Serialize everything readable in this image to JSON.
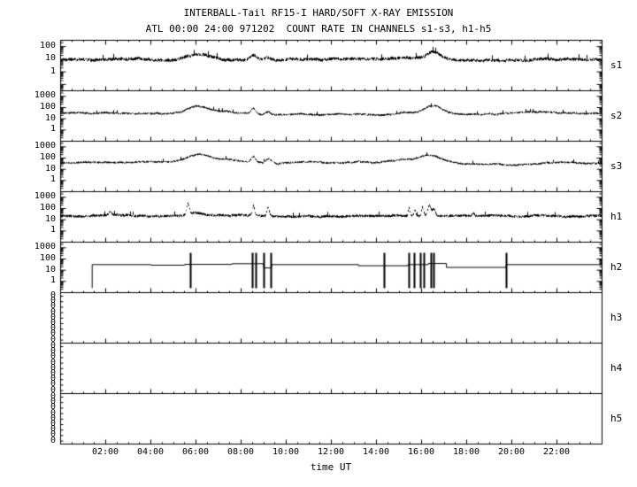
{
  "page": {
    "bg": "#ffffff",
    "fg": "#000000"
  },
  "title": {
    "line1": "INTERBALL-Tail RF15-I HARD/SOFT X-RAY EMISSION",
    "line2": "ATL 00:00 24:00 971202  COUNT RATE IN CHANNELS s1-s3, h1-h5"
  },
  "x_axis": {
    "label": "time UT",
    "range_hours": [
      0,
      24
    ],
    "major_tick_hours": 2,
    "minor_tick_hours": 0.5,
    "tick_labels": [
      {
        "t": 2,
        "text": "02:00"
      },
      {
        "t": 4,
        "text": "04:00"
      },
      {
        "t": 6,
        "text": "06:00"
      },
      {
        "t": 8,
        "text": "08:00"
      },
      {
        "t": 10,
        "text": "10:00"
      },
      {
        "t": 12,
        "text": "12:00"
      },
      {
        "t": 14,
        "text": "14:00"
      },
      {
        "t": 16,
        "text": "16:00"
      },
      {
        "t": 18,
        "text": "18:00"
      },
      {
        "t": 20,
        "text": "20:00"
      },
      {
        "t": 22,
        "text": "22:00"
      }
    ]
  },
  "chart_data": {
    "type": "line",
    "title": "INTERBALL-Tail RF15-I HARD/SOFT X-RAY EMISSION",
    "subtitle": "ATL 00:00 24:00 971202  COUNT RATE IN CHANNELS s1-s3, h1-h5",
    "x_unit": "hours UT, 00:00-24:00 on 1997-12-02",
    "y_unit": "count rate, log scale",
    "legend": "off",
    "grid": "off",
    "panels": [
      {
        "label": "s1",
        "kind": "noisy",
        "ylog_range": [
          -1.5,
          2.5
        ],
        "yticks": [
          {
            "text": "100",
            "log": 2
          },
          {
            "text": "10",
            "log": 1
          },
          {
            "text": "1",
            "log": 0
          }
        ],
        "baseline_log": 0.95,
        "noise_log": 0.13,
        "events": [
          {
            "t": 6.0,
            "w": 0.5,
            "amp": 0.3
          },
          {
            "t": 6.6,
            "w": 1.0,
            "amp": 0.12
          },
          {
            "t": 8.55,
            "w": 0.12,
            "amp": 0.3
          },
          {
            "t": 9.2,
            "w": 0.1,
            "amp": 0.18
          },
          {
            "t": 15.3,
            "w": 0.4,
            "amp": 0.1
          },
          {
            "t": 16.5,
            "w": 0.3,
            "amp": 0.55
          }
        ]
      },
      {
        "label": "s2",
        "kind": "noisy",
        "ylog_range": [
          -1,
          3.5
        ],
        "yticks": [
          {
            "text": "1000",
            "log": 3
          },
          {
            "text": "100",
            "log": 2
          },
          {
            "text": "10",
            "log": 1
          },
          {
            "text": "1",
            "log": 0
          }
        ],
        "baseline_log": 1.45,
        "noise_log": 0.09,
        "events": [
          {
            "t": 6.0,
            "w": 0.45,
            "amp": 0.55
          },
          {
            "t": 7.0,
            "w": 0.8,
            "amp": 0.2
          },
          {
            "t": 8.55,
            "w": 0.1,
            "amp": 0.5
          },
          {
            "t": 9.2,
            "w": 0.1,
            "amp": 0.25
          },
          {
            "t": 13.5,
            "w": 1.5,
            "amp": -0.08
          },
          {
            "t": 15.3,
            "w": 0.35,
            "amp": 0.18
          },
          {
            "t": 16.5,
            "w": 0.4,
            "amp": 0.75
          },
          {
            "t": 21.8,
            "w": 1.5,
            "amp": 0.1
          }
        ]
      },
      {
        "label": "s3",
        "kind": "noisy",
        "ylog_range": [
          -1,
          3.5
        ],
        "yticks": [
          {
            "text": "1000",
            "log": 3
          },
          {
            "text": "100",
            "log": 2
          },
          {
            "text": "10",
            "log": 1
          },
          {
            "text": "1",
            "log": 0
          }
        ],
        "baseline_log": 1.55,
        "noise_log": 0.09,
        "events": [
          {
            "t": 6.1,
            "w": 0.5,
            "amp": 0.6
          },
          {
            "t": 7.3,
            "w": 0.9,
            "amp": 0.3
          },
          {
            "t": 8.55,
            "w": 0.1,
            "amp": 0.5
          },
          {
            "t": 9.25,
            "w": 0.12,
            "amp": 0.4
          },
          {
            "t": 10.5,
            "w": 1.0,
            "amp": 0.12
          },
          {
            "t": 15.2,
            "w": 0.5,
            "amp": 0.3
          },
          {
            "t": 16.4,
            "w": 0.5,
            "amp": 0.7
          },
          {
            "t": 19.0,
            "w": 2.0,
            "amp": -0.12
          }
        ]
      },
      {
        "label": "h1",
        "kind": "noisy",
        "ylog_range": [
          -1,
          3.5
        ],
        "yticks": [
          {
            "text": "1000",
            "log": 3
          },
          {
            "text": "100",
            "log": 2
          },
          {
            "text": "10",
            "log": 1
          },
          {
            "text": "1",
            "log": 0
          }
        ],
        "baseline_log": 1.35,
        "noise_log": 0.12,
        "events": [
          {
            "t": 2.2,
            "w": 0.05,
            "amp": 0.35
          },
          {
            "t": 5.65,
            "w": 0.06,
            "amp": 0.95
          },
          {
            "t": 5.9,
            "w": 0.25,
            "amp": 0.25
          },
          {
            "t": 8.55,
            "w": 0.05,
            "amp": 0.85
          },
          {
            "t": 9.2,
            "w": 0.05,
            "amp": 0.8
          },
          {
            "t": 15.45,
            "w": 0.04,
            "amp": 0.7
          },
          {
            "t": 15.7,
            "w": 0.04,
            "amp": 0.55
          },
          {
            "t": 16.05,
            "w": 0.05,
            "amp": 0.8
          },
          {
            "t": 16.35,
            "w": 0.07,
            "amp": 0.95
          },
          {
            "t": 16.55,
            "w": 0.06,
            "amp": 0.65
          },
          {
            "t": 18.3,
            "w": 0.05,
            "amp": 0.25
          }
        ]
      },
      {
        "label": "h2",
        "kind": "steps",
        "ylog_range": [
          -1,
          3.5
        ],
        "yticks": [
          {
            "text": "1000",
            "log": 3
          },
          {
            "text": "100",
            "log": 2
          },
          {
            "text": "10",
            "log": 1
          },
          {
            "text": "1",
            "log": 0
          }
        ],
        "steps": [
          {
            "t": 1.4,
            "level": 1.5
          },
          {
            "t": 4.0,
            "level": 1.45
          },
          {
            "t": 5.5,
            "level": 1.52
          },
          {
            "t": 7.6,
            "level": 1.58
          },
          {
            "t": 9.0,
            "level": 1.2
          },
          {
            "t": 9.35,
            "level": 1.5
          },
          {
            "t": 13.2,
            "level": 1.4
          },
          {
            "t": 15.4,
            "level": 1.5
          },
          {
            "t": 16.3,
            "level": 1.6
          },
          {
            "t": 17.1,
            "level": 1.25
          },
          {
            "t": 19.75,
            "level": 1.5
          }
        ],
        "spikes": [
          5.75,
          8.5,
          8.65,
          9.0,
          9.35,
          14.35,
          15.45,
          15.7,
          15.95,
          16.1,
          16.45,
          16.55,
          19.75
        ],
        "spike_top_log": 2.55,
        "spike_bottom_log": -0.6
      },
      {
        "label": "h3",
        "kind": "empty",
        "yticks_zero": [
          "0",
          "0",
          "0",
          "0",
          "0",
          "0",
          "0",
          "0",
          "0"
        ]
      },
      {
        "label": "h4",
        "kind": "empty",
        "yticks_zero": [
          "0",
          "0",
          "0",
          "0",
          "0",
          "0",
          "0",
          "0",
          "0"
        ]
      },
      {
        "label": "h5",
        "kind": "empty",
        "yticks_zero": [
          "0",
          "0",
          "0",
          "0",
          "0",
          "0",
          "0",
          "0",
          "0"
        ]
      }
    ]
  }
}
